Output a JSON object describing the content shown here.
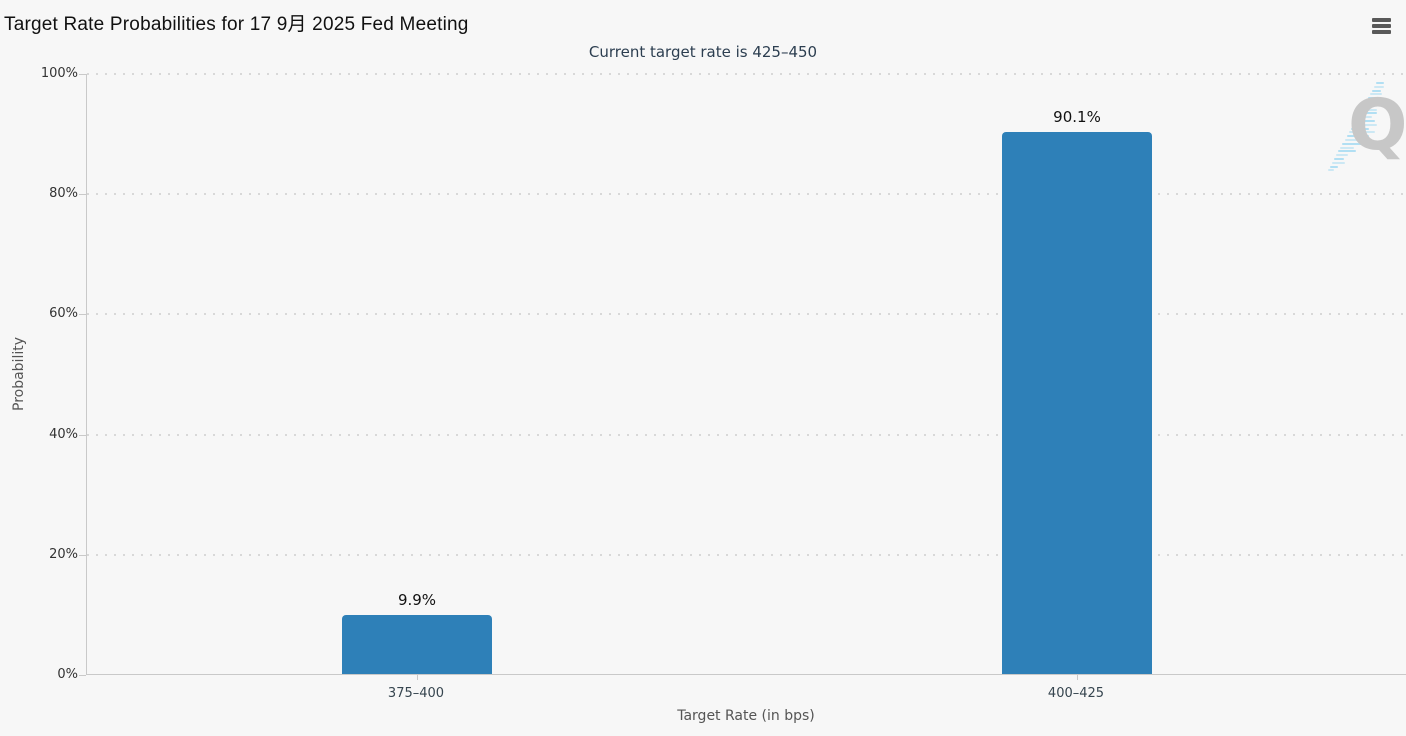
{
  "header": {
    "title": "Target Rate Probabilities for 17 9月 2025 Fed Meeting",
    "menu_icon": "hamburger-menu-icon"
  },
  "chart_data": {
    "type": "bar",
    "title": "Target Rate Probabilities for 17 9月 2025 Fed Meeting",
    "subtitle": "Current target rate is 425–450",
    "categories": [
      "375–400",
      "400–425"
    ],
    "values": [
      9.9,
      90.1
    ],
    "data_labels": [
      "9.9%",
      "90.1%"
    ],
    "xlabel": "Target Rate (in bps)",
    "ylabel": "Probability",
    "ylim": [
      0,
      100
    ],
    "yticks": [
      0,
      20,
      40,
      60,
      80,
      100
    ],
    "ytick_labels": [
      "0%",
      "20%",
      "40%",
      "60%",
      "80%",
      "100%"
    ],
    "grid": "horizontal-dotted",
    "legend_position": "none",
    "watermark_letter": "Q"
  },
  "colors": {
    "background": "#f7f7f7",
    "bar": "#2e80b8",
    "title_text": "#111111",
    "subtitle_text": "#2c3e50",
    "axis_line": "#c9c9c9",
    "gridline": "#d8d8d8",
    "ytick_label": "#333333",
    "xtick_label": "#36454f",
    "axis_title": "#555555",
    "data_label": "#111111",
    "menu_icon": "#595959",
    "watermark_q": "#c7c7c7",
    "watermark_dash": "#a9dcf2"
  }
}
